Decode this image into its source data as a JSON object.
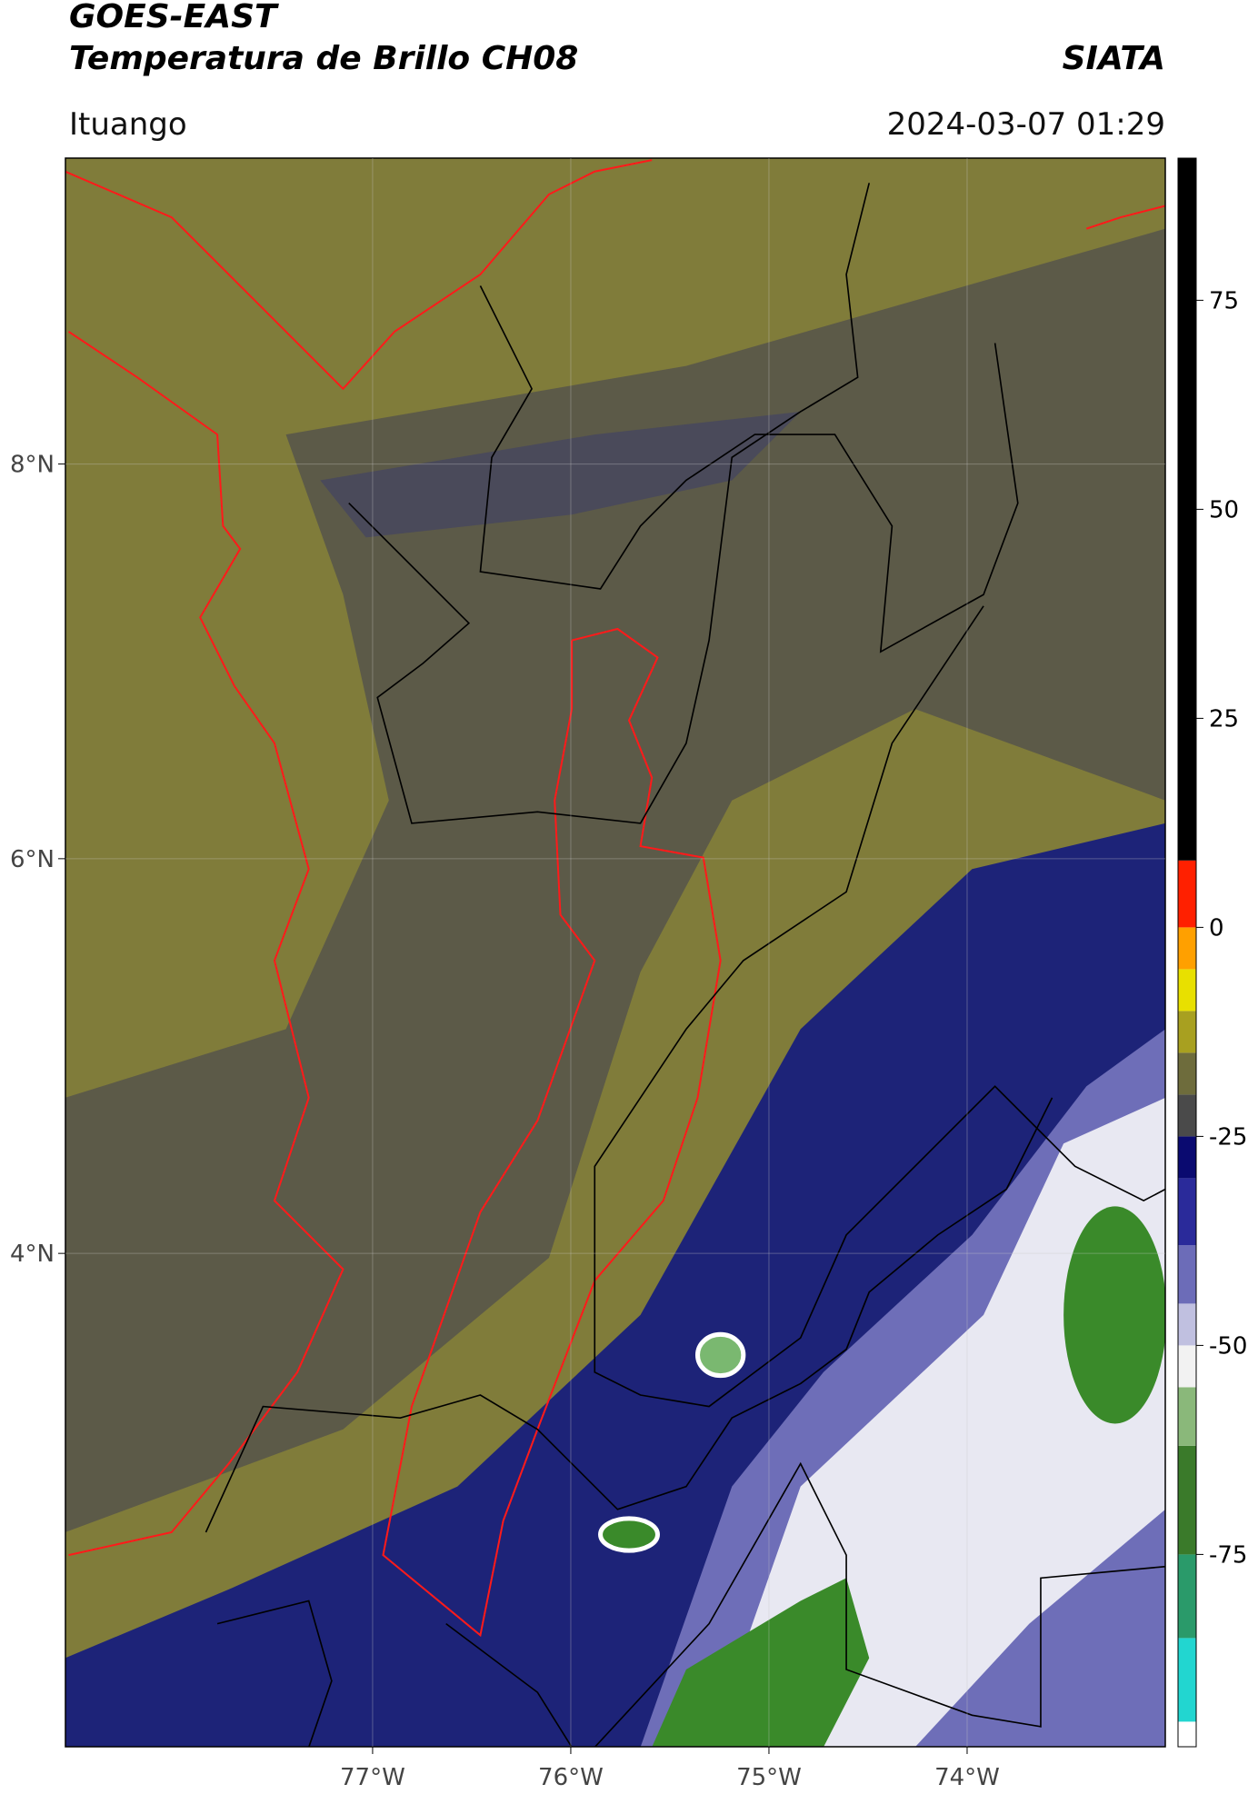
{
  "header": {
    "title": "GOES-EAST",
    "subtitle": "Temperatura de Brillo CH08",
    "brand": "SIATA",
    "location": "Ituango",
    "datetime": "2024-03-07 01:29"
  },
  "map": {
    "xlim": [
      -78.55,
      -73.0
    ],
    "ylim": [
      1.5,
      9.55
    ],
    "xticks": [
      {
        "value": -77,
        "label": "77°W"
      },
      {
        "value": -76,
        "label": "76°W"
      },
      {
        "value": -75,
        "label": "75°W"
      },
      {
        "value": -74,
        "label": "74°W"
      }
    ],
    "yticks": [
      {
        "value": 8,
        "label": "8°N"
      },
      {
        "value": 6,
        "label": "6°N"
      },
      {
        "value": 4,
        "label": "4°N"
      }
    ],
    "grid": true
  },
  "colorbar": {
    "clim": [
      -98,
      92
    ],
    "ticks": [
      75,
      50,
      25,
      0,
      -25,
      -50,
      -75
    ],
    "colormap": [
      {
        "value": -95,
        "color": "#ffffff"
      },
      {
        "value": -85,
        "color": "#22d6d0"
      },
      {
        "value": -75,
        "color": "#2a9a6a"
      },
      {
        "value": -62,
        "color": "#3a7a2a"
      },
      {
        "value": -55,
        "color": "#8ab87a"
      },
      {
        "value": -50,
        "color": "#f2f2f2"
      },
      {
        "value": -45,
        "color": "#c0c0e0"
      },
      {
        "value": -38,
        "color": "#6c6cb8"
      },
      {
        "value": -30,
        "color": "#2a2a9a"
      },
      {
        "value": -25,
        "color": "#0a0a70"
      },
      {
        "value": -20,
        "color": "#4a4a4a"
      },
      {
        "value": -15,
        "color": "#6e6c3c"
      },
      {
        "value": -10,
        "color": "#a8a020"
      },
      {
        "value": -5,
        "color": "#e8e000"
      },
      {
        "value": 0,
        "color": "#ffa000"
      },
      {
        "value": 8,
        "color": "#ff2000"
      },
      {
        "value": 92,
        "color": "#000000"
      }
    ]
  }
}
